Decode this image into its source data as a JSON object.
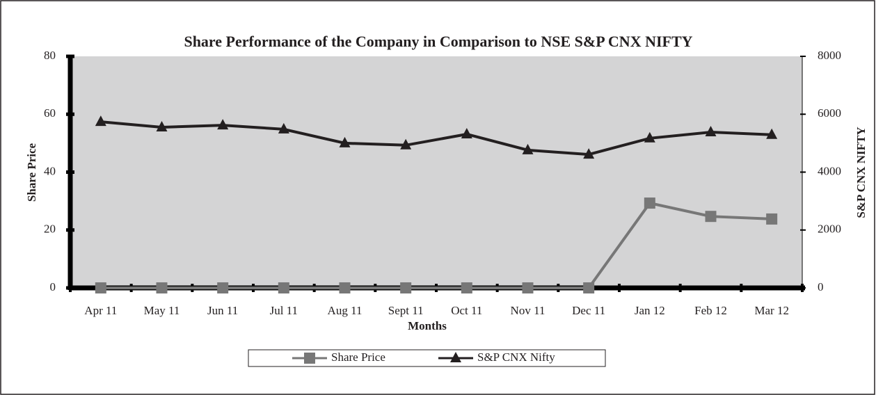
{
  "chart_data": {
    "type": "line",
    "title": "Share Performance of the Company in Comparison to NSE S&P CNX NIFTY",
    "x_label": "Months",
    "y_label": "Share Price",
    "y2_label": "S&P CNX NIFTY",
    "categories": [
      "Apr 11",
      "May 11",
      "Jun 11",
      "Jul 11",
      "Aug 11",
      "Sept 11",
      "Oct 11",
      "Nov 11",
      "Dec 11",
      "Jan 12",
      "Feb 12",
      "Mar 12"
    ],
    "series": [
      {
        "name": "Share Price",
        "color": "#777777",
        "marker": "square",
        "values": [
          0,
          0,
          0,
          0,
          0,
          0,
          0,
          0,
          0,
          29.3,
          24.7,
          23.8
        ]
      },
      {
        "name": "S&P CNX Nifty",
        "color": "#231f20",
        "marker": "triangle",
        "axis": "y2",
        "values": [
          5740,
          5550,
          5620,
          5480,
          5000,
          4930,
          5310,
          4760,
          4610,
          5170,
          5380,
          5290
        ]
      }
    ],
    "ylim": [
      0,
      80
    ],
    "yticks": [
      0,
      20,
      40,
      60,
      80
    ],
    "y2lim": [
      0,
      8000
    ],
    "y2ticks": [
      0,
      2000,
      4000,
      6000,
      8000
    ],
    "legend": "bottom"
  }
}
